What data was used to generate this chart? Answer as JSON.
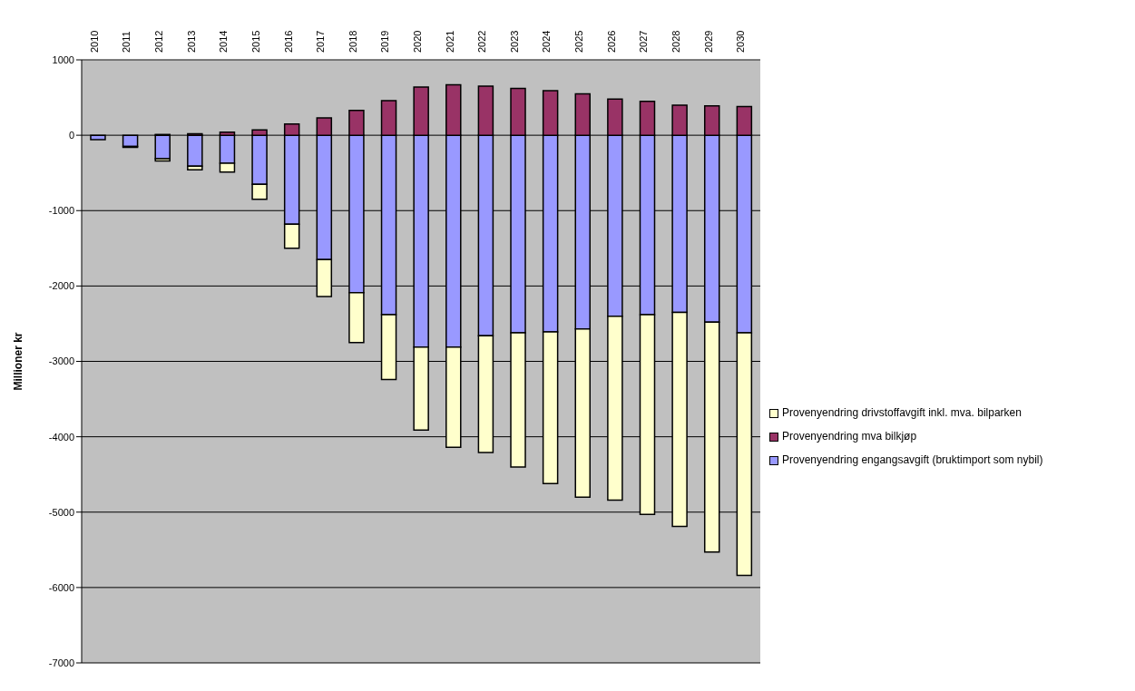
{
  "chart_data": {
    "type": "bar",
    "stacked": true,
    "ylabel": "Millioner kr",
    "categories": [
      "2010",
      "2011",
      "2012",
      "2013",
      "2014",
      "2015",
      "2016",
      "2017",
      "2018",
      "2019",
      "2020",
      "2021",
      "2022",
      "2023",
      "2024",
      "2025",
      "2026",
      "2027",
      "2028",
      "2029",
      "2030"
    ],
    "series": [
      {
        "name": "Provenyendring  engangsavgift (bruktimport som nybil)",
        "color": "#9999ff",
        "values": [
          -60,
          -150,
          -310,
          -410,
          -370,
          -650,
          -1180,
          -1650,
          -2090,
          -2380,
          -2810,
          -2810,
          -2660,
          -2620,
          -2610,
          -2570,
          -2400,
          -2380,
          -2350,
          -2480,
          -2620
        ]
      },
      {
        "name": "Provenyendring mva bilkjøp",
        "color": "#993366",
        "values": [
          0,
          0,
          10,
          20,
          40,
          70,
          150,
          230,
          330,
          460,
          640,
          670,
          650,
          620,
          590,
          550,
          480,
          450,
          400,
          390,
          380
        ]
      },
      {
        "name": "Provenyendring drivstoffavgift inkl. mva. bilparken",
        "color": "#ffffcc",
        "values": [
          0,
          -10,
          -30,
          -50,
          -120,
          -200,
          -320,
          -490,
          -660,
          -860,
          -1100,
          -1330,
          -1550,
          -1780,
          -2010,
          -2230,
          -2440,
          -2650,
          -2840,
          -3050,
          -3220
        ]
      }
    ],
    "ylim": [
      -7000,
      1000
    ],
    "yticks": [
      -7000,
      -6000,
      -5000,
      -4000,
      -3000,
      -2000,
      -1000,
      0,
      1000
    ],
    "grid": "y",
    "legend": "right"
  }
}
